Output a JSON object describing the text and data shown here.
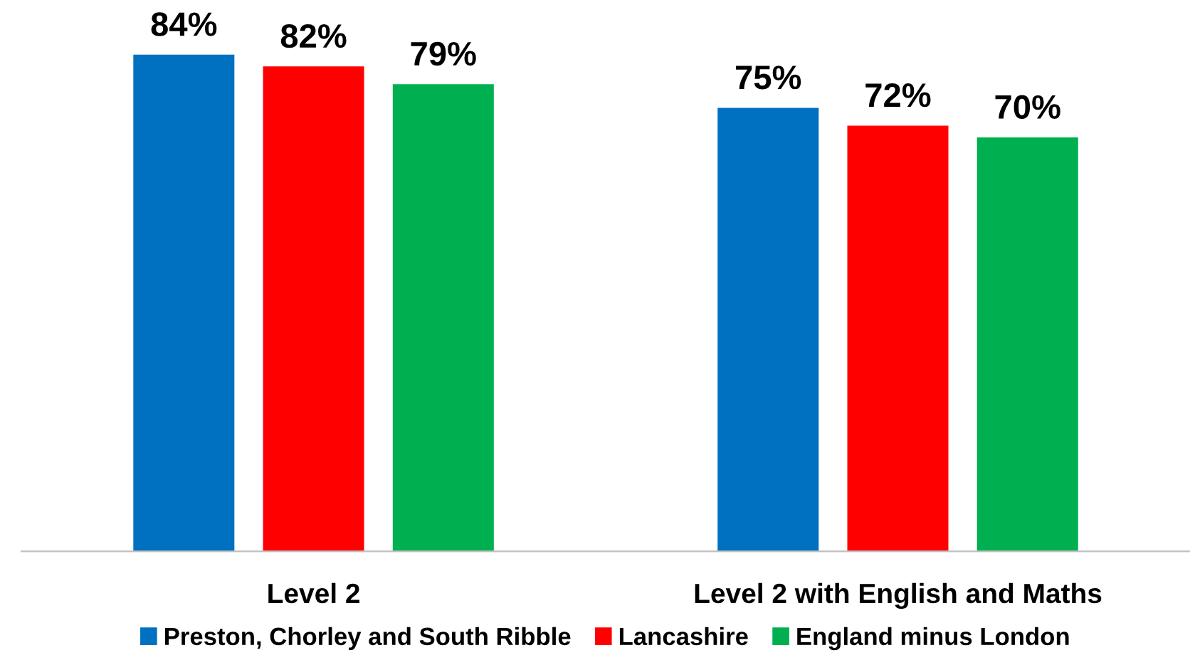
{
  "chart_data": {
    "type": "bar",
    "categories": [
      "Level 2",
      "Level 2 with English and Maths"
    ],
    "series": [
      {
        "name": "Preston, Chorley and South Ribble",
        "color": "#0070c0",
        "values": [
          84,
          75
        ],
        "value_labels": [
          "84%",
          "75%"
        ]
      },
      {
        "name": "Lancashire",
        "color": "#ff0000",
        "values": [
          82,
          72
        ],
        "value_labels": [
          "82%",
          "72%"
        ]
      },
      {
        "name": "England minus London",
        "color": "#00b050",
        "values": [
          79,
          70
        ],
        "value_labels": [
          "79%",
          "70%"
        ]
      }
    ],
    "tick_labels": "x",
    "grid": false,
    "legend": "bottom"
  }
}
